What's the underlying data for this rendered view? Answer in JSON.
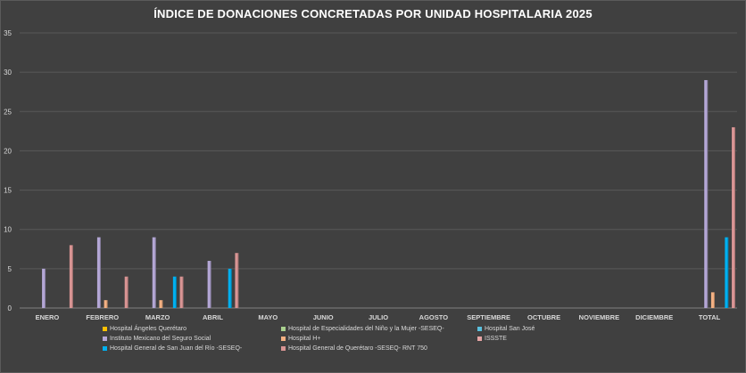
{
  "colors": {
    "background": "#404040",
    "gridline": "#595959",
    "axis_text": "#d9d9d9",
    "title_text": "#ffffff"
  },
  "chart_data": {
    "type": "bar",
    "title": "ÍNDICE DE DONACIONES CONCRETADAS POR UNIDAD HOSPITALARIA 2025",
    "xlabel": "",
    "ylabel": "",
    "ylim": [
      0,
      35
    ],
    "yticks": [
      0,
      5,
      10,
      15,
      20,
      25,
      30,
      35
    ],
    "grid": true,
    "legend_position": "bottom",
    "categories": [
      "ENERO",
      "FEBRERO",
      "MARZO",
      "ABRIL",
      "MAYO",
      "JUNIO",
      "JULIO",
      "AGOSTO",
      "SEPTIEMBRE",
      "OCTUBRE",
      "NOVIEMBRE",
      "DICIEMBRE",
      "TOTAL"
    ],
    "series": [
      {
        "name": "Hospital Ángeles Querétaro",
        "color": "#ffc000",
        "values": [
          0,
          0,
          0,
          0,
          0,
          0,
          0,
          0,
          0,
          0,
          0,
          0,
          0
        ]
      },
      {
        "name": "Hospital de Especialidades del Niño y la Mujer -SESEQ-",
        "color": "#a9d18e",
        "values": [
          0,
          0,
          0,
          0,
          0,
          0,
          0,
          0,
          0,
          0,
          0,
          0,
          0
        ]
      },
      {
        "name": "Hospital San José",
        "color": "#5bc0de",
        "values": [
          0,
          0,
          0,
          0,
          0,
          0,
          0,
          0,
          0,
          0,
          0,
          0,
          0
        ]
      },
      {
        "name": "Instituto Mexicano del Seguro Social",
        "color": "#b4a7d6",
        "values": [
          5,
          9,
          9,
          6,
          0,
          0,
          0,
          0,
          0,
          0,
          0,
          0,
          29
        ]
      },
      {
        "name": "Hospital H+",
        "color": "#f4b183",
        "values": [
          0,
          1,
          1,
          0,
          0,
          0,
          0,
          0,
          0,
          0,
          0,
          0,
          2
        ]
      },
      {
        "name": "ISSSTE",
        "color": "#e6a5a5",
        "values": [
          0,
          0,
          0,
          0,
          0,
          0,
          0,
          0,
          0,
          0,
          0,
          0,
          0
        ]
      },
      {
        "name": "Hospital General de San Juan del Río -SESEQ-",
        "color": "#00b0f0",
        "values": [
          0,
          0,
          4,
          5,
          0,
          0,
          0,
          0,
          0,
          0,
          0,
          0,
          9
        ]
      },
      {
        "name": "Hospital General de Querétaro -SESEQ- RNT 750",
        "color": "#d99594",
        "values": [
          8,
          4,
          4,
          7,
          0,
          0,
          0,
          0,
          0,
          0,
          0,
          0,
          23
        ]
      }
    ]
  }
}
